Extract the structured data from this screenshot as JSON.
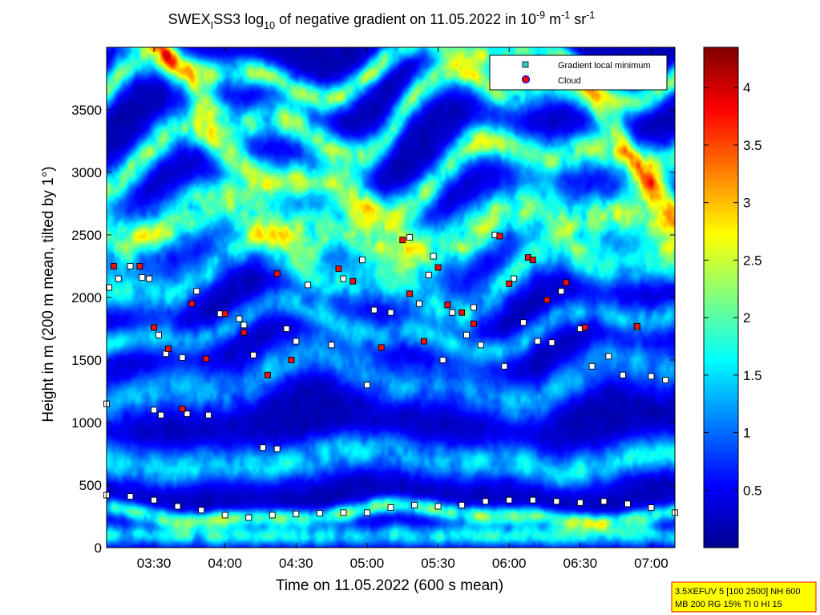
{
  "chart_data": {
    "type": "heatmap",
    "title_parts": {
      "prefix": "SWEX",
      "prefix_sub": "I",
      "after_prefix": "SS3 log",
      "log_sub": "10",
      "middle": " of negative gradient on 11.05.2022 in 10",
      "exp1": "-9",
      "unit1": " m",
      "exp2": "-1",
      "unit2": " sr",
      "exp3": "-1"
    },
    "xlabel": "Time on 11.05.2022 (600 s mean)",
    "ylabel": "Height in m (200 m mean, tilted by 1°)",
    "x_unit": "minutes of day",
    "xlim": [
      190,
      430
    ],
    "ylim": [
      0,
      4000
    ],
    "x_ticks": [
      {
        "value": 210,
        "label": "03:30"
      },
      {
        "value": 240,
        "label": "04:00"
      },
      {
        "value": 270,
        "label": "04:30"
      },
      {
        "value": 300,
        "label": "05:00"
      },
      {
        "value": 330,
        "label": "05:30"
      },
      {
        "value": 360,
        "label": "06:00"
      },
      {
        "value": 390,
        "label": "06:30"
      },
      {
        "value": 420,
        "label": "07:00"
      }
    ],
    "y_ticks": [
      {
        "value": 0,
        "label": "0"
      },
      {
        "value": 500,
        "label": "500"
      },
      {
        "value": 1000,
        "label": "1000"
      },
      {
        "value": 1500,
        "label": "1500"
      },
      {
        "value": 2000,
        "label": "2000"
      },
      {
        "value": 2500,
        "label": "2500"
      },
      {
        "value": 3000,
        "label": "3000"
      },
      {
        "value": 3500,
        "label": "3500"
      }
    ],
    "colorbar": {
      "colormap": "jet",
      "range": [
        0,
        4.35
      ],
      "ticks": [
        {
          "value": 0.5,
          "label": "0.5"
        },
        {
          "value": 1,
          "label": "1"
        },
        {
          "value": 1.5,
          "label": "1.5"
        },
        {
          "value": 2,
          "label": "2"
        },
        {
          "value": 2.5,
          "label": "2.5"
        },
        {
          "value": 3,
          "label": "3"
        },
        {
          "value": 3.5,
          "label": "3.5"
        },
        {
          "value": 4,
          "label": "4"
        }
      ]
    },
    "legend": {
      "placement": "top-right",
      "entries": [
        {
          "label": "Gradient local minimum",
          "marker": "square",
          "color": "#33cccc"
        },
        {
          "label": "Cloud",
          "marker": "circle",
          "color": "#ff0000",
          "edge": "#0000ff"
        }
      ]
    },
    "bands": [
      {
        "h": 100,
        "v": 1.7,
        "w": 90,
        "osc": 0
      },
      {
        "h": 270,
        "v": 2.1,
        "w": 70,
        "osc": 50
      },
      {
        "h": 700,
        "v": 1.5,
        "w": 150,
        "osc": 60
      },
      {
        "h": 1350,
        "v": 1.2,
        "w": 180,
        "osc": 150
      },
      {
        "h": 1750,
        "v": 1.3,
        "w": 120,
        "osc": 150
      },
      {
        "h": 2150,
        "v": 1.6,
        "w": 170,
        "osc": 200
      },
      {
        "h": 2550,
        "v": 2.4,
        "w": 220,
        "osc": 150
      },
      {
        "h": 3000,
        "v": 2.3,
        "w": 160,
        "osc": 250
      },
      {
        "h": 3500,
        "v": 2.2,
        "w": 150,
        "osc": 300
      },
      {
        "h": 3850,
        "v": 2.1,
        "w": 120,
        "osc": 200
      }
    ],
    "series": [
      {
        "name": "Gradient local minimum",
        "points": [
          {
            "x": 190,
            "y": 420
          },
          {
            "x": 200,
            "y": 410
          },
          {
            "x": 210,
            "y": 380
          },
          {
            "x": 220,
            "y": 330
          },
          {
            "x": 230,
            "y": 300
          },
          {
            "x": 240,
            "y": 260
          },
          {
            "x": 250,
            "y": 240
          },
          {
            "x": 260,
            "y": 260
          },
          {
            "x": 270,
            "y": 270
          },
          {
            "x": 280,
            "y": 275
          },
          {
            "x": 290,
            "y": 280
          },
          {
            "x": 300,
            "y": 280
          },
          {
            "x": 310,
            "y": 320
          },
          {
            "x": 320,
            "y": 340
          },
          {
            "x": 330,
            "y": 330
          },
          {
            "x": 340,
            "y": 340
          },
          {
            "x": 350,
            "y": 370
          },
          {
            "x": 360,
            "y": 380
          },
          {
            "x": 370,
            "y": 380
          },
          {
            "x": 380,
            "y": 370
          },
          {
            "x": 390,
            "y": 360
          },
          {
            "x": 400,
            "y": 370
          },
          {
            "x": 410,
            "y": 350
          },
          {
            "x": 420,
            "y": 320
          },
          {
            "x": 430,
            "y": 280
          },
          {
            "x": 191,
            "y": 2080
          },
          {
            "x": 195,
            "y": 2150
          },
          {
            "x": 200,
            "y": 2250
          },
          {
            "x": 205,
            "y": 2160
          },
          {
            "x": 208,
            "y": 2150
          },
          {
            "x": 212,
            "y": 1700
          },
          {
            "x": 210,
            "y": 1100
          },
          {
            "x": 213,
            "y": 1060
          },
          {
            "x": 224,
            "y": 1070
          },
          {
            "x": 215,
            "y": 1550
          },
          {
            "x": 222,
            "y": 1520
          },
          {
            "x": 228,
            "y": 2050
          },
          {
            "x": 238,
            "y": 1870
          },
          {
            "x": 248,
            "y": 1780
          },
          {
            "x": 252,
            "y": 1540
          },
          {
            "x": 256,
            "y": 800
          },
          {
            "x": 262,
            "y": 790
          },
          {
            "x": 266,
            "y": 1750
          },
          {
            "x": 275,
            "y": 2100
          },
          {
            "x": 285,
            "y": 1620
          },
          {
            "x": 290,
            "y": 2150
          },
          {
            "x": 298,
            "y": 2300
          },
          {
            "x": 300,
            "y": 1300
          },
          {
            "x": 303,
            "y": 1900
          },
          {
            "x": 310,
            "y": 1880
          },
          {
            "x": 318,
            "y": 2480
          },
          {
            "x": 322,
            "y": 1950
          },
          {
            "x": 328,
            "y": 2330
          },
          {
            "x": 332,
            "y": 1500
          },
          {
            "x": 336,
            "y": 1880
          },
          {
            "x": 342,
            "y": 1700
          },
          {
            "x": 348,
            "y": 1620
          },
          {
            "x": 354,
            "y": 2500
          },
          {
            "x": 358,
            "y": 1450
          },
          {
            "x": 362,
            "y": 2150
          },
          {
            "x": 366,
            "y": 1800
          },
          {
            "x": 372,
            "y": 1650
          },
          {
            "x": 378,
            "y": 1640
          },
          {
            "x": 382,
            "y": 2050
          },
          {
            "x": 390,
            "y": 1750
          },
          {
            "x": 395,
            "y": 1450
          },
          {
            "x": 402,
            "y": 1530
          },
          {
            "x": 408,
            "y": 1380
          },
          {
            "x": 414,
            "y": 1760
          },
          {
            "x": 420,
            "y": 1370
          },
          {
            "x": 426,
            "y": 1340
          },
          {
            "x": 190,
            "y": 1150
          },
          {
            "x": 233,
            "y": 1060
          },
          {
            "x": 246,
            "y": 1830
          },
          {
            "x": 270,
            "y": 1650
          },
          {
            "x": 326,
            "y": 2180
          },
          {
            "x": 345,
            "y": 1920
          }
        ]
      },
      {
        "name": "Cloud",
        "points": [
          {
            "x": 193,
            "y": 2250
          },
          {
            "x": 204,
            "y": 2250
          },
          {
            "x": 210,
            "y": 1760
          },
          {
            "x": 216,
            "y": 1590
          },
          {
            "x": 226,
            "y": 1950
          },
          {
            "x": 232,
            "y": 1510
          },
          {
            "x": 240,
            "y": 1870
          },
          {
            "x": 248,
            "y": 1720
          },
          {
            "x": 262,
            "y": 2190
          },
          {
            "x": 268,
            "y": 1500
          },
          {
            "x": 288,
            "y": 2230
          },
          {
            "x": 294,
            "y": 2130
          },
          {
            "x": 306,
            "y": 1600
          },
          {
            "x": 315,
            "y": 2460
          },
          {
            "x": 318,
            "y": 2030
          },
          {
            "x": 330,
            "y": 2240
          },
          {
            "x": 334,
            "y": 1940
          },
          {
            "x": 340,
            "y": 1880
          },
          {
            "x": 345,
            "y": 1790
          },
          {
            "x": 356,
            "y": 2490
          },
          {
            "x": 360,
            "y": 2110
          },
          {
            "x": 368,
            "y": 2320
          },
          {
            "x": 376,
            "y": 1980
          },
          {
            "x": 384,
            "y": 2120
          },
          {
            "x": 392,
            "y": 1760
          },
          {
            "x": 414,
            "y": 1770
          },
          {
            "x": 222,
            "y": 1110
          },
          {
            "x": 258,
            "y": 1380
          },
          {
            "x": 370,
            "y": 2300
          },
          {
            "x": 324,
            "y": 1650
          }
        ]
      }
    ]
  },
  "info_box": {
    "line1": "3.5XEFUV 5 [100 2500] NH 600",
    "line2": "MB 200 RG 15% TI 0 HI 15"
  }
}
